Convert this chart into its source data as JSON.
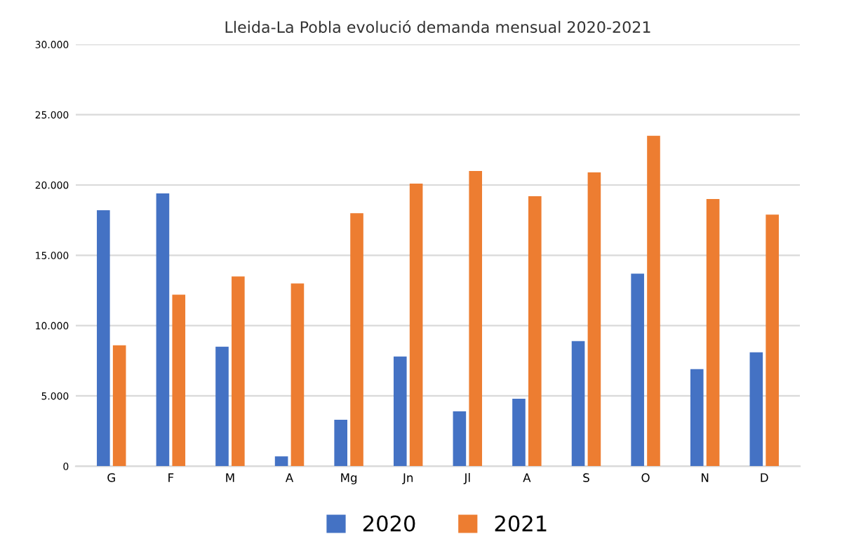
{
  "chart_data": {
    "type": "bar",
    "title": "Lleida-La Pobla evolució demanda mensual 2020-2021",
    "categories": [
      "G",
      "F",
      "M",
      "A",
      "Mg",
      "Jn",
      "Jl",
      "A",
      "S",
      "O",
      "N",
      "D"
    ],
    "series": [
      {
        "name": "2020",
        "color": "#4472c4",
        "values": [
          18200,
          19400,
          8500,
          700,
          3300,
          7800,
          3900,
          4800,
          8900,
          13700,
          6900,
          8100
        ]
      },
      {
        "name": "2021",
        "color": "#ed7d31",
        "values": [
          8600,
          12200,
          13500,
          13000,
          18000,
          20100,
          21000,
          19200,
          20900,
          23500,
          19000,
          17900
        ]
      }
    ],
    "ylim": [
      0,
      30000
    ],
    "yticks": [
      0,
      {
        "value": 5000,
        "label": "5.000"
      },
      {
        "value": 10000,
        "label": "10.000"
      },
      {
        "value": 15000,
        "label": "15.000"
      },
      {
        "value": 20000,
        "label": "20.000"
      },
      {
        "value": 25000,
        "label": "25.000"
      },
      {
        "value": 30000,
        "label": "30.000"
      }
    ],
    "grid": "y",
    "legend": "bottom"
  }
}
